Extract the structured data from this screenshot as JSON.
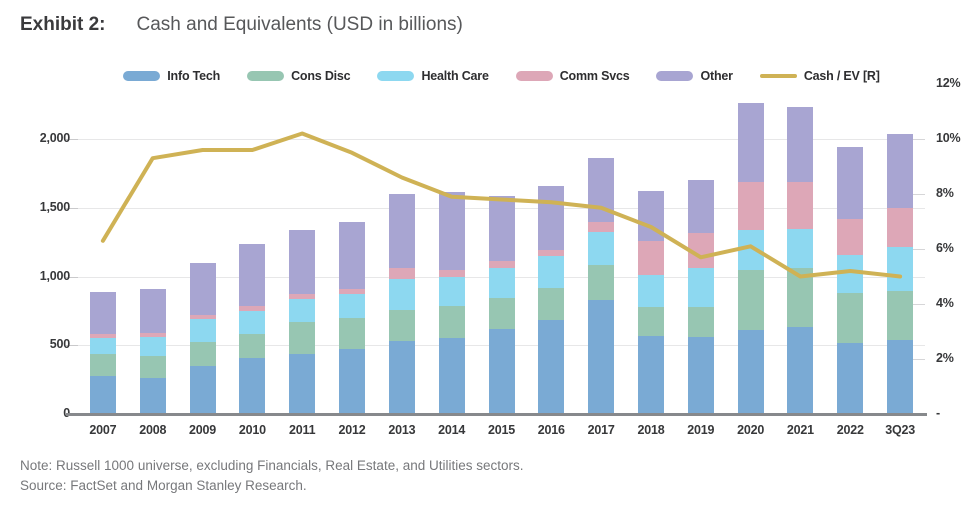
{
  "title": {
    "prefix": "Exhibit 2:",
    "text": "Cash and Equivalents (USD in billions)"
  },
  "notes": [
    "Note: Russell 1000 universe, excluding Financials, Real Estate, and Utilities sectors.",
    "Source: FactSet and Morgan Stanley Research."
  ],
  "colors": {
    "info_tech": "#7aaad4",
    "cons_disc": "#97c6b2",
    "health_care": "#8dd8f0",
    "comm_svcs": "#dda7b7",
    "other": "#a8a5d2",
    "cash_ev_line": "#cfb255",
    "axis_line": "#87898c",
    "gridline": "#e7e7e8",
    "note_text": "#77787b"
  },
  "chart_data": {
    "type": "bar",
    "subtype": "stacked-bars-with-right-axis-line",
    "title": "Cash and Equivalents (USD in billions)",
    "grid": true,
    "legend_position": "top",
    "categories": [
      "2007",
      "2008",
      "2009",
      "2010",
      "2011",
      "2012",
      "2013",
      "2014",
      "2015",
      "2016",
      "2017",
      "2018",
      "2019",
      "2020",
      "2021",
      "2022",
      "3Q23"
    ],
    "series": [
      {
        "name": "Info Tech",
        "type": "bar",
        "axis": "left",
        "color": "#7aaad4",
        "values": [
          275,
          260,
          350,
          405,
          440,
          475,
          530,
          555,
          620,
          685,
          830,
          570,
          560,
          610,
          630,
          520,
          540
        ]
      },
      {
        "name": "Cons Disc",
        "type": "bar",
        "axis": "left",
        "color": "#97c6b2",
        "values": [
          165,
          165,
          175,
          175,
          230,
          220,
          225,
          230,
          225,
          230,
          255,
          205,
          220,
          435,
          435,
          360,
          355
        ]
      },
      {
        "name": "Health Care",
        "type": "bar",
        "axis": "left",
        "color": "#8dd8f0",
        "values": [
          115,
          135,
          165,
          170,
          165,
          180,
          230,
          215,
          215,
          235,
          240,
          235,
          280,
          290,
          280,
          280,
          320
        ]
      },
      {
        "name": "Comm Svcs",
        "type": "bar",
        "axis": "left",
        "color": "#dda7b7",
        "values": [
          30,
          30,
          30,
          35,
          35,
          35,
          80,
          50,
          55,
          45,
          70,
          250,
          255,
          350,
          340,
          255,
          280
        ]
      },
      {
        "name": "Other",
        "type": "bar",
        "axis": "left",
        "color": "#a8a5d2",
        "values": [
          305,
          320,
          380,
          450,
          465,
          485,
          535,
          565,
          470,
          460,
          465,
          360,
          390,
          580,
          550,
          530,
          545
        ]
      },
      {
        "name": "Cash / EV [R]",
        "type": "line",
        "axis": "right",
        "color": "#cfb255",
        "values": [
          6.3,
          9.3,
          9.6,
          9.6,
          10.2,
          9.5,
          8.6,
          7.9,
          7.8,
          7.7,
          7.5,
          6.8,
          5.7,
          6.1,
          5.0,
          5.2,
          5.0
        ]
      }
    ],
    "stacked_totals": [
      890,
      910,
      1100,
      1235,
      1335,
      1395,
      1600,
      1615,
      1585,
      1655,
      1860,
      1620,
      1705,
      2265,
      2235,
      1945,
      2040
    ],
    "left_axis": {
      "min": 0,
      "max": 2400,
      "ticks": [
        {
          "label": "0",
          "value": 0
        },
        {
          "label": "500",
          "value": 500
        },
        {
          "label": "1,000",
          "value": 1000
        },
        {
          "label": "1,500",
          "value": 1500
        },
        {
          "label": "2,000",
          "value": 2000
        }
      ]
    },
    "right_axis": {
      "min": 0,
      "max": 12,
      "ticks": [
        {
          "label": "-",
          "value": 0
        },
        {
          "label": "2%",
          "value": 2
        },
        {
          "label": "4%",
          "value": 4
        },
        {
          "label": "6%",
          "value": 6
        },
        {
          "label": "8%",
          "value": 8
        },
        {
          "label": "10%",
          "value": 10
        },
        {
          "label": "12%",
          "value": 12
        }
      ]
    }
  }
}
